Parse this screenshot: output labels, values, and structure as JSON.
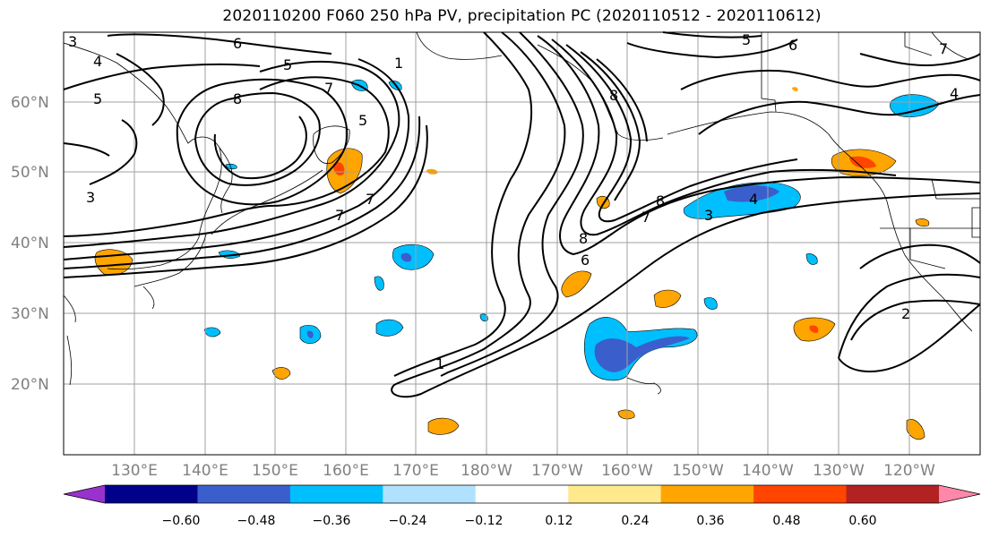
{
  "title": "2020110200 F060 250 hPa PV, precipitation PC (2020110512 - 2020110612)",
  "map": {
    "lat_labels": [
      "60°N",
      "50°N",
      "40°N",
      "30°N",
      "20°N"
    ],
    "lon_labels": [
      "130°E",
      "140°E",
      "150°E",
      "160°E",
      "170°E",
      "180°W",
      "170°W",
      "160°W",
      "150°W",
      "140°W",
      "130°W",
      "120°W"
    ],
    "contour_labels": [
      "3",
      "4",
      "5",
      "6",
      "5",
      "6",
      "5",
      "8",
      "7",
      "3",
      "5",
      "7",
      "8",
      "7",
      "8",
      "7",
      "6",
      "8",
      "1",
      "4",
      "3",
      "2",
      "7",
      "4",
      "1"
    ]
  },
  "colorbar": {
    "ticks": [
      "−0.60",
      "−0.48",
      "−0.36",
      "−0.24",
      "−0.12",
      "0.12",
      "0.24",
      "0.36",
      "0.48",
      "0.60"
    ],
    "colors": [
      "#9932cc",
      "#00008b",
      "#3a5fcd",
      "#00bfff",
      "#b0e2ff",
      "#ffffff",
      "#ffe98c",
      "#ffa500",
      "#ff4500",
      "#b22222",
      "#ff88aa"
    ]
  }
}
